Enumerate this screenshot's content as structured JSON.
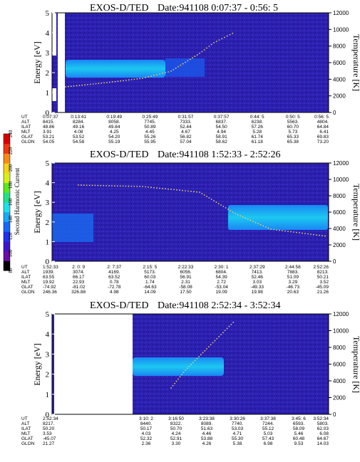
{
  "chart_data": [
    {
      "type": "heatmap",
      "title_left": "EXOS-D/TED",
      "title_right": "Date:941108  0:07:37 - 0:56: 5",
      "ylabel": "Energy [eV]",
      "y2label": "Temperature [K]",
      "ylim": [
        0,
        5
      ],
      "y2lim": [
        0,
        12000
      ],
      "yticks": [
        "0",
        "1",
        "2",
        "3",
        "4",
        "5"
      ],
      "y2ticks": [
        "0",
        "2000",
        "4000",
        "6000",
        "8000",
        "10000",
        "12000"
      ],
      "row_labels": [
        "UT",
        "ALT",
        "ILAT",
        "MLT",
        "GLAT",
        "GLON"
      ],
      "columns": [
        [
          "0:07:37",
          "8415.",
          "48.86",
          "3.91",
          "53.21",
          "54.05"
        ],
        [
          "0:13:41",
          "8284.",
          "49.16",
          "4.08",
          "53.52",
          "54.58"
        ],
        [
          "0:19:49",
          "8058.",
          "49.84",
          "4.25",
          "54.20",
          "55.19"
        ],
        [
          "0:25:49",
          "7745.",
          "50.89",
          "4.45",
          "55.26",
          "55.95"
        ],
        [
          "0:31:57",
          "7333.",
          "52.44",
          "4.67",
          "56.82",
          "57.04"
        ],
        [
          "0:37:57",
          "6837.",
          "54.50",
          "4.94",
          "58.91",
          "58.62"
        ],
        [
          "0:44: 5",
          "6238.",
          "57.26",
          "5.28",
          "61.74",
          "61.18"
        ],
        [
          "0:50: 5",
          "5563.",
          "60.70",
          "5.73",
          "65.33",
          "65.38"
        ],
        [
          "0:56: 5",
          "4804.",
          "64.84",
          "6.41",
          "69.83",
          "73.20"
        ]
      ]
    },
    {
      "type": "heatmap",
      "title_left": "EXOS-D/TED",
      "title_right": "Date:941108  1:52:33 - 2:52:26",
      "ylabel": "Energy [eV]",
      "y2label": "Temperature [K]",
      "ylim": [
        0,
        5
      ],
      "y2lim": [
        0,
        12000
      ],
      "yticks": [
        "0",
        "1",
        "2",
        "3",
        "4",
        "5"
      ],
      "y2ticks": [
        "0",
        "2000",
        "4000",
        "6000",
        "8000",
        "10000",
        "12000"
      ],
      "row_labels": [
        "UT",
        "ALT",
        "ILAT",
        "MLT",
        "GLAT",
        "GLON"
      ],
      "columns": [
        [
          "1:52:33",
          "1939.",
          "63.55",
          "19.92",
          "-74.92",
          "246.36"
        ],
        [
          "2: 0: 9",
          "3074.",
          "66.17",
          "22.93",
          "-81.02",
          "326.88"
        ],
        [
          "2: 7:37",
          "4169.",
          "63.52",
          "0.78",
          "-72.78",
          "4.98"
        ],
        [
          "2:15: 5",
          "5173.",
          "60.03",
          "1.74",
          "-64.63",
          "14.09"
        ],
        [
          "2:22:33",
          "6056.",
          "56.91",
          "2.31",
          "-58.08",
          "17.50"
        ],
        [
          "2:30: 1",
          "6804.",
          "54.39",
          "2.72",
          "-53.04",
          "19.09"
        ],
        [
          "2:37:29",
          "7413.",
          "52.46",
          "3.03",
          "-49.33",
          "19.98"
        ],
        [
          "2:44:58",
          "7883.",
          "51.09",
          "3.29",
          "-46.73",
          "20.63"
        ],
        [
          "2:52:26",
          "8213.",
          "50.21",
          "3.52",
          "-45.09",
          "21.26"
        ]
      ]
    },
    {
      "type": "heatmap",
      "title_left": "EXOS-D/TED",
      "title_right": "Date:941108  2:52:34 - 3:52:34",
      "ylabel": "Energy [eV]",
      "y2label": "Temperature [K]",
      "ylim": [
        0,
        5
      ],
      "y2lim": [
        0,
        12000
      ],
      "yticks": [
        "0",
        "1",
        "2",
        "3",
        "4",
        "5"
      ],
      "y2ticks": [
        "0",
        "2000",
        "4000",
        "6000",
        "8000",
        "10000",
        "12000"
      ],
      "row_labels": [
        "UT",
        "ALT",
        "ILAT",
        "MLT",
        "GLAT",
        "GLON"
      ],
      "columns": [
        [
          "2:52:34",
          "8217.",
          "50.20",
          "3.53",
          "-45.07",
          "21.27"
        ],
        [
          "3:10: 2",
          "8440.",
          "50.17",
          "4.03",
          "52.32",
          "2.36"
        ],
        [
          "3:16:50",
          "8322.",
          "50.70",
          "4.24",
          "52.91",
          "3.30"
        ],
        [
          "3:23:38",
          "8089.",
          "51.63",
          "4.46",
          "53.88",
          "4.26"
        ],
        [
          "3:30:26",
          "7740.",
          "53.03",
          "4.71",
          "55.30",
          "5.38"
        ],
        [
          "3:37:38",
          "7244.",
          "55.12",
          "5.03",
          "57.43",
          "6.98"
        ],
        [
          "3:45: 6",
          "6593.",
          "58.09",
          "5.46",
          "60.48",
          "9.53"
        ],
        [
          "3:52:34",
          "5803.",
          "62.03",
          "6.08",
          "64.67",
          "14.03"
        ]
      ]
    }
  ],
  "colorbar": {
    "label": "Second Harmonic Current",
    "ticks": [
      "80",
      "100",
      "120",
      "140",
      "160",
      "180",
      "200",
      "220",
      "240"
    ],
    "colors": [
      "#000000",
      "#6b0da8",
      "#3e14c8",
      "#1f33f0",
      "#1769f5",
      "#1aa7f3",
      "#1fe0e8",
      "#22e08a",
      "#5ce81c",
      "#d6ef19",
      "#f5d216",
      "#f58a14",
      "#ef3614",
      "#d90000"
    ]
  }
}
